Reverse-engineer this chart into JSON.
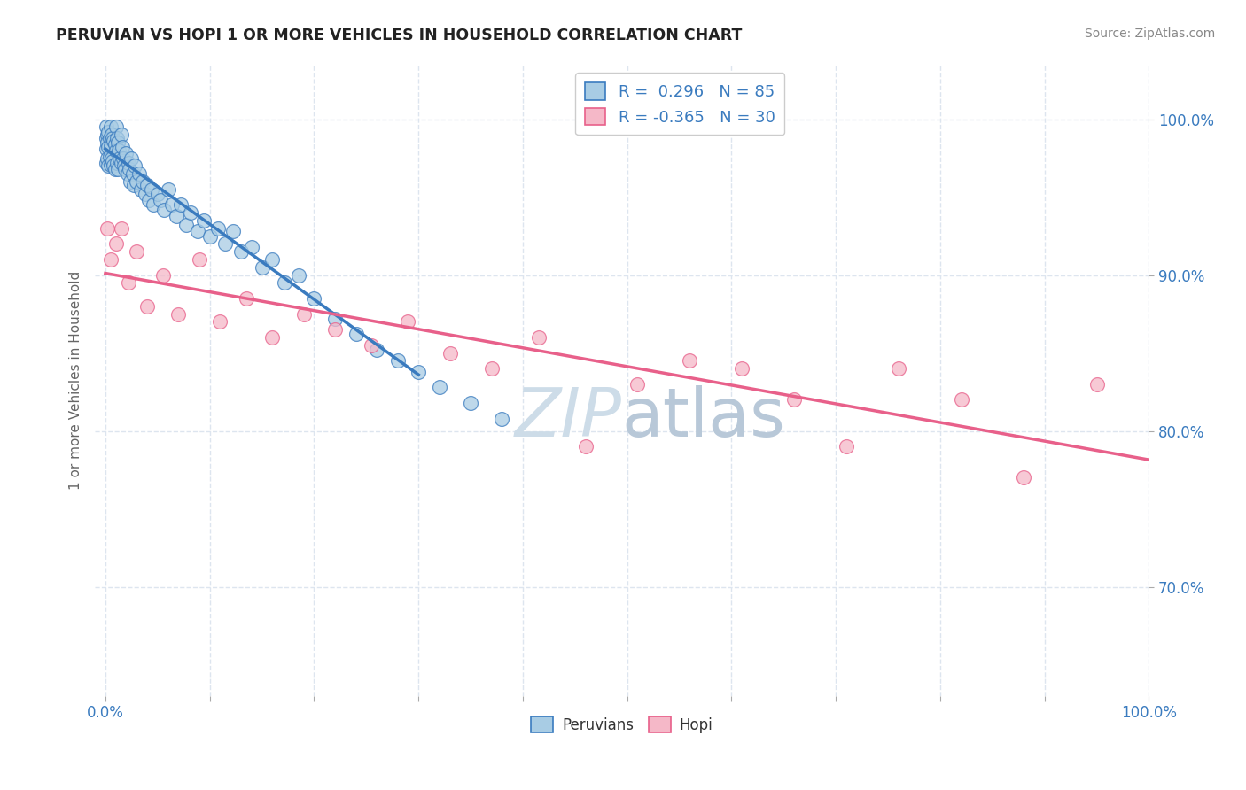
{
  "title": "PERUVIAN VS HOPI 1 OR MORE VEHICLES IN HOUSEHOLD CORRELATION CHART",
  "source_text": "Source: ZipAtlas.com",
  "ylabel": "1 or more Vehicles in Household",
  "xlim": [
    -0.01,
    1.0
  ],
  "ylim": [
    0.63,
    1.035
  ],
  "y_tick_positions": [
    0.7,
    0.8,
    0.9,
    1.0
  ],
  "peruvian_R": 0.296,
  "peruvian_N": 85,
  "hopi_R": -0.365,
  "hopi_N": 30,
  "blue_color": "#a8cce4",
  "pink_color": "#f5b8c8",
  "blue_line_color": "#3a7bbf",
  "pink_line_color": "#e8608a",
  "watermark_color": "#cddce8",
  "background_color": "#ffffff",
  "grid_color": "#dde5ef",
  "peruvian_x": [
    0.001,
    0.001,
    0.001,
    0.001,
    0.002,
    0.002,
    0.002,
    0.003,
    0.003,
    0.003,
    0.004,
    0.004,
    0.005,
    0.005,
    0.005,
    0.006,
    0.006,
    0.007,
    0.007,
    0.008,
    0.008,
    0.009,
    0.009,
    0.01,
    0.01,
    0.011,
    0.011,
    0.012,
    0.012,
    0.013,
    0.014,
    0.015,
    0.015,
    0.016,
    0.017,
    0.018,
    0.019,
    0.02,
    0.021,
    0.022,
    0.023,
    0.024,
    0.025,
    0.026,
    0.027,
    0.028,
    0.03,
    0.032,
    0.034,
    0.036,
    0.038,
    0.04,
    0.042,
    0.044,
    0.046,
    0.05,
    0.053,
    0.056,
    0.06,
    0.064,
    0.068,
    0.072,
    0.077,
    0.082,
    0.088,
    0.094,
    0.1,
    0.108,
    0.115,
    0.122,
    0.13,
    0.14,
    0.15,
    0.16,
    0.172,
    0.185,
    0.2,
    0.22,
    0.24,
    0.26,
    0.28,
    0.3,
    0.32,
    0.35,
    0.38
  ],
  "peruvian_y": [
    0.995,
    0.988,
    0.981,
    0.972,
    0.99,
    0.985,
    0.975,
    0.992,
    0.982,
    0.97,
    0.988,
    0.976,
    0.995,
    0.983,
    0.971,
    0.99,
    0.975,
    0.988,
    0.973,
    0.986,
    0.97,
    0.984,
    0.968,
    0.995,
    0.98,
    0.988,
    0.972,
    0.985,
    0.968,
    0.98,
    0.975,
    0.99,
    0.972,
    0.982,
    0.975,
    0.97,
    0.968,
    0.978,
    0.965,
    0.972,
    0.968,
    0.96,
    0.975,
    0.965,
    0.958,
    0.97,
    0.96,
    0.965,
    0.955,
    0.96,
    0.952,
    0.958,
    0.948,
    0.955,
    0.945,
    0.952,
    0.948,
    0.942,
    0.955,
    0.945,
    0.938,
    0.945,
    0.932,
    0.94,
    0.928,
    0.935,
    0.925,
    0.93,
    0.92,
    0.928,
    0.915,
    0.918,
    0.905,
    0.91,
    0.895,
    0.9,
    0.885,
    0.872,
    0.862,
    0.852,
    0.845,
    0.838,
    0.828,
    0.818,
    0.808
  ],
  "hopi_x": [
    0.002,
    0.005,
    0.01,
    0.015,
    0.022,
    0.03,
    0.04,
    0.055,
    0.07,
    0.09,
    0.11,
    0.135,
    0.16,
    0.19,
    0.22,
    0.255,
    0.29,
    0.33,
    0.37,
    0.415,
    0.46,
    0.51,
    0.56,
    0.61,
    0.66,
    0.71,
    0.76,
    0.82,
    0.88,
    0.95
  ],
  "hopi_y": [
    0.93,
    0.91,
    0.92,
    0.93,
    0.895,
    0.915,
    0.88,
    0.9,
    0.875,
    0.91,
    0.87,
    0.885,
    0.86,
    0.875,
    0.865,
    0.855,
    0.87,
    0.85,
    0.84,
    0.86,
    0.79,
    0.83,
    0.845,
    0.84,
    0.82,
    0.79,
    0.84,
    0.82,
    0.77,
    0.83
  ]
}
